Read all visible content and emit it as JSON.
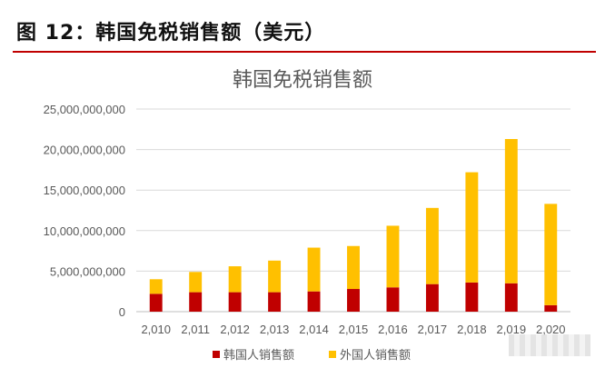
{
  "figure_title": "图 12：韩国免税销售额（美元）",
  "colors": {
    "rule": "#c00000",
    "series_korean": "#c00000",
    "series_foreign": "#ffc000",
    "grid": "#d9d9d9"
  },
  "chart_data": {
    "type": "bar",
    "stacked": true,
    "title": "韩国免税销售额",
    "categories": [
      "2,010",
      "2,011",
      "2,012",
      "2,013",
      "2,014",
      "2,015",
      "2,016",
      "2,017",
      "2,018",
      "2,019",
      "2,020"
    ],
    "series": [
      {
        "name": "韩国人销售额",
        "color": "#c00000",
        "values": [
          2200000000,
          2400000000,
          2400000000,
          2400000000,
          2500000000,
          2800000000,
          3000000000,
          3400000000,
          3600000000,
          3500000000,
          800000000
        ]
      },
      {
        "name": "外国人销售额",
        "color": "#ffc000",
        "values": [
          1800000000,
          2500000000,
          3200000000,
          3900000000,
          5400000000,
          5300000000,
          7600000000,
          9400000000,
          13600000000,
          17800000000,
          12500000000
        ]
      }
    ],
    "ylim": [
      0,
      25000000000
    ],
    "yticks": [
      0,
      5000000000,
      10000000000,
      15000000000,
      20000000000,
      25000000000
    ],
    "ytick_labels": [
      "0",
      "5,000,000,000",
      "10,000,000,000",
      "15,000,000,000",
      "20,000,000,000",
      "25,000,000,000"
    ],
    "grid": true,
    "legend_position": "bottom"
  }
}
